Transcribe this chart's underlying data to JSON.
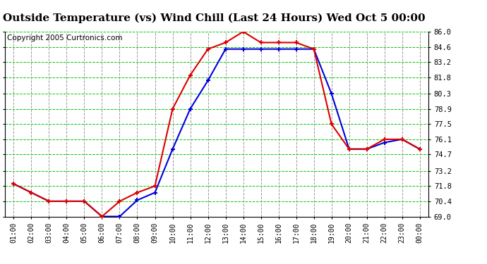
{
  "title": "Outside Temperature (vs) Wind Chill (Last 24 Hours) Wed Oct 5 00:00",
  "copyright": "Copyright 2005 Curtronics.com",
  "x_labels": [
    "01:00",
    "02:00",
    "03:00",
    "04:00",
    "05:00",
    "06:00",
    "07:00",
    "08:00",
    "09:00",
    "10:00",
    "11:00",
    "12:00",
    "13:00",
    "14:00",
    "15:00",
    "16:00",
    "17:00",
    "18:00",
    "19:00",
    "20:00",
    "21:00",
    "22:00",
    "23:00",
    "00:00"
  ],
  "outside_temp": [
    72.0,
    71.2,
    70.4,
    70.4,
    70.4,
    69.0,
    69.0,
    70.5,
    71.2,
    75.2,
    78.9,
    81.5,
    84.4,
    84.4,
    84.4,
    84.4,
    84.4,
    84.4,
    80.3,
    75.2,
    75.2,
    75.8,
    76.1,
    75.2
  ],
  "wind_chill": [
    72.0,
    71.2,
    70.4,
    70.4,
    70.4,
    69.0,
    70.4,
    71.2,
    71.8,
    78.9,
    82.0,
    84.4,
    85.0,
    86.0,
    85.0,
    85.0,
    85.0,
    84.4,
    77.5,
    75.2,
    75.2,
    76.1,
    76.1,
    75.2
  ],
  "ylim_min": 69.0,
  "ylim_max": 86.0,
  "yticks": [
    69.0,
    70.4,
    71.8,
    73.2,
    74.7,
    76.1,
    77.5,
    78.9,
    80.3,
    81.8,
    83.2,
    84.6,
    86.0
  ],
  "outside_temp_color": "#0000dd",
  "wind_chill_color": "#dd0000",
  "grid_h_color": "#00cc00",
  "grid_v_color": "#999999",
  "bg_color": "#ffffff",
  "title_fontsize": 11,
  "copyright_fontsize": 7.5
}
